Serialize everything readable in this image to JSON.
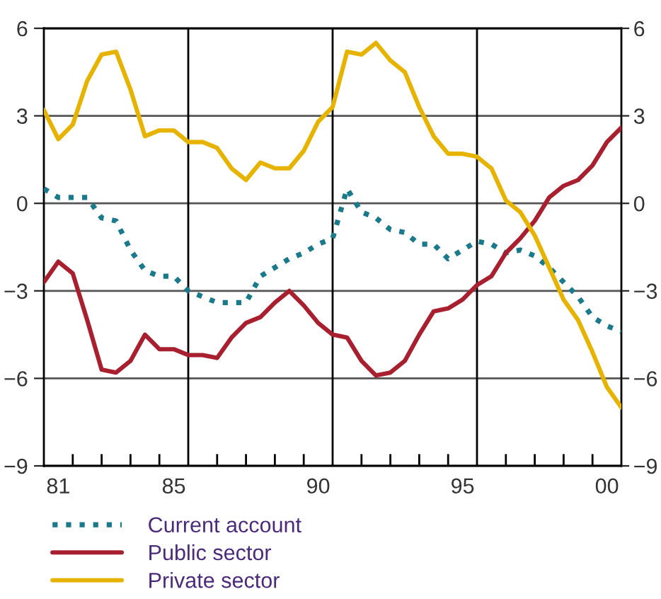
{
  "chart_data": {
    "type": "line",
    "x": [
      1980.5,
      1981,
      1981.5,
      1982,
      1982.5,
      1983,
      1983.5,
      1984,
      1984.5,
      1985,
      1985.5,
      1986,
      1986.5,
      1987,
      1987.5,
      1988,
      1988.5,
      1989,
      1989.5,
      1990,
      1990.5,
      1991,
      1991.5,
      1992,
      1992.5,
      1993,
      1993.5,
      1994,
      1994.5,
      1995,
      1995.5,
      1996,
      1996.5,
      1997,
      1997.5,
      1998,
      1998.5,
      1999,
      1999.5,
      2000,
      2000.5
    ],
    "series": [
      {
        "name": "Current account",
        "color": "#1a7a8c",
        "line_style": "dotted",
        "values": [
          0.5,
          0.2,
          0.2,
          0.2,
          -0.5,
          -0.6,
          -1.6,
          -2.3,
          -2.5,
          -2.5,
          -3.0,
          -3.2,
          -3.4,
          -3.4,
          -3.4,
          -2.5,
          -2.2,
          -1.9,
          -1.7,
          -1.4,
          -1.2,
          0.5,
          -0.3,
          -0.5,
          -0.9,
          -1.0,
          -1.4,
          -1.4,
          -1.9,
          -1.6,
          -1.3,
          -1.4,
          -1.7,
          -1.6,
          -1.8,
          -2.2,
          -2.7,
          -3.2,
          -3.9,
          -4.2,
          -4.4
        ]
      },
      {
        "name": "Public sector",
        "color": "#a8202f",
        "line_style": "solid",
        "values": [
          -2.7,
          -2.0,
          -2.4,
          -4.0,
          -5.7,
          -5.8,
          -5.4,
          -4.5,
          -5.0,
          -5.0,
          -5.2,
          -5.2,
          -5.3,
          -4.6,
          -4.1,
          -3.9,
          -3.4,
          -3.0,
          -3.5,
          -4.1,
          -4.5,
          -4.6,
          -5.4,
          -5.9,
          -5.8,
          -5.4,
          -4.5,
          -3.7,
          -3.6,
          -3.3,
          -2.8,
          -2.5,
          -1.7,
          -1.2,
          -0.6,
          0.2,
          0.6,
          0.8,
          1.3,
          2.1,
          2.6
        ]
      },
      {
        "name": "Private sector",
        "color": "#e6b400",
        "line_style": "solid",
        "values": [
          3.2,
          2.2,
          2.7,
          4.2,
          5.1,
          5.2,
          3.9,
          2.3,
          2.5,
          2.5,
          2.1,
          2.1,
          1.9,
          1.2,
          0.8,
          1.4,
          1.2,
          1.2,
          1.8,
          2.8,
          3.3,
          5.2,
          5.1,
          5.5,
          4.9,
          4.5,
          3.3,
          2.3,
          1.7,
          1.7,
          1.6,
          1.2,
          0.1,
          -0.3,
          -1.1,
          -2.2,
          -3.3,
          -4.0,
          -5.1,
          -6.3,
          -7.0
        ]
      }
    ],
    "xlim": [
      1980.5,
      2000.5
    ],
    "xticks": [
      {
        "value": 1981,
        "label": "81"
      },
      {
        "value": 1985,
        "label": "85"
      },
      {
        "value": 1990,
        "label": "90"
      },
      {
        "value": 1995,
        "label": "95"
      },
      {
        "value": 2000,
        "label": "00"
      },
      {
        "value": 1981.5,
        "label": null
      },
      {
        "value": 1982.5,
        "label": null
      },
      {
        "value": 1983.5,
        "label": null
      },
      {
        "value": 1984.5,
        "label": null
      },
      {
        "value": 1986.5,
        "label": null
      },
      {
        "value": 1987.5,
        "label": null
      },
      {
        "value": 1988.5,
        "label": null
      },
      {
        "value": 1989.5,
        "label": null
      },
      {
        "value": 1991.5,
        "label": null
      },
      {
        "value": 1992.5,
        "label": null
      },
      {
        "value": 1993.5,
        "label": null
      },
      {
        "value": 1994.5,
        "label": null
      },
      {
        "value": 1996.5,
        "label": null
      },
      {
        "value": 1997.5,
        "label": null
      },
      {
        "value": 1998.5,
        "label": null
      },
      {
        "value": 1999.5,
        "label": null
      }
    ],
    "ylim": [
      -9,
      6
    ],
    "yticks": [
      -9,
      -6,
      -3,
      0,
      3,
      6
    ],
    "y2lim": [
      -9,
      6
    ],
    "y2ticks": [
      -9,
      -6,
      -3,
      0,
      3,
      6
    ],
    "ref_lines": [
      {
        "axis": "x",
        "value": 1985.5,
        "color": "#000000"
      },
      {
        "axis": "x",
        "value": 1990.5,
        "color": "#000000"
      },
      {
        "axis": "x",
        "value": 1995.5,
        "color": "#000000"
      }
    ],
    "grid": "y",
    "legend": "bottom",
    "marker": "none"
  }
}
